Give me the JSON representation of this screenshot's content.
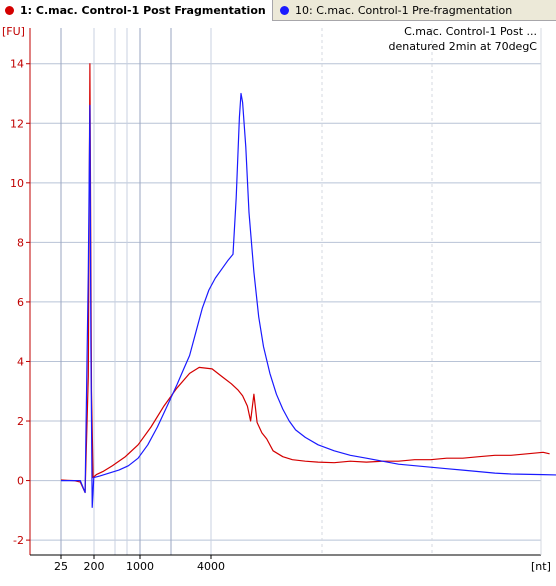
{
  "tabs": [
    {
      "label": "1: C.mac. Control-1 Post Fragmentation",
      "color": "#d40000",
      "active": true
    },
    {
      "label": "10: C.mac. Control-1 Pre-fragmentation",
      "color": "#1a1aff",
      "active": false
    }
  ],
  "chart_data": {
    "type": "line",
    "annotation_lines": [
      "C.mac. Control-1 Post ...",
      "denatured 2min at 70degC"
    ],
    "ylabel": "[FU]",
    "xlabel": "[nt]",
    "ylim": [
      -2.5,
      15.2
    ],
    "yticks": [
      -2,
      0,
      2,
      4,
      6,
      8,
      10,
      12,
      14
    ],
    "ytick_labels": [
      "-2",
      "0",
      "2",
      "4",
      "6",
      "8",
      "10",
      "12",
      "14"
    ],
    "xticks": [
      {
        "label": "25",
        "value": 25
      },
      {
        "label": "200",
        "value": 200
      },
      {
        "label": "1000",
        "value": 1000
      },
      {
        "label": "4000",
        "value": 4000
      }
    ],
    "grid": true,
    "series": [
      {
        "color": "#d40000",
        "points": [
          [
            0.0,
            0.02
          ],
          [
            0.02,
            0.01
          ],
          [
            0.04,
            0.0
          ],
          [
            0.06,
            -0.05
          ],
          [
            0.075,
            -0.4
          ],
          [
            0.085,
            3.5
          ],
          [
            0.09,
            14.0
          ],
          [
            0.095,
            3.0
          ],
          [
            0.1,
            0.1
          ],
          [
            0.11,
            0.2
          ],
          [
            0.13,
            0.3
          ],
          [
            0.16,
            0.5
          ],
          [
            0.2,
            0.8
          ],
          [
            0.24,
            1.2
          ],
          [
            0.28,
            1.8
          ],
          [
            0.32,
            2.5
          ],
          [
            0.36,
            3.1
          ],
          [
            0.4,
            3.6
          ],
          [
            0.43,
            3.8
          ],
          [
            0.47,
            3.75
          ],
          [
            0.5,
            3.5
          ],
          [
            0.53,
            3.25
          ],
          [
            0.55,
            3.05
          ],
          [
            0.565,
            2.85
          ],
          [
            0.58,
            2.5
          ],
          [
            0.59,
            2.0
          ],
          [
            0.6,
            2.9
          ],
          [
            0.61,
            1.95
          ],
          [
            0.625,
            1.6
          ],
          [
            0.64,
            1.4
          ],
          [
            0.66,
            1.0
          ],
          [
            0.69,
            0.8
          ],
          [
            0.72,
            0.7
          ],
          [
            0.76,
            0.65
          ],
          [
            0.8,
            0.62
          ],
          [
            0.85,
            0.6
          ],
          [
            0.9,
            0.65
          ],
          [
            0.95,
            0.62
          ],
          [
            1.0,
            0.65
          ],
          [
            1.05,
            0.65
          ],
          [
            1.1,
            0.7
          ],
          [
            1.15,
            0.7
          ],
          [
            1.2,
            0.75
          ],
          [
            1.25,
            0.75
          ],
          [
            1.3,
            0.8
          ],
          [
            1.35,
            0.85
          ],
          [
            1.4,
            0.85
          ],
          [
            1.45,
            0.9
          ],
          [
            1.5,
            0.95
          ],
          [
            1.52,
            0.9
          ]
        ]
      },
      {
        "color": "#1a1aff",
        "points": [
          [
            0.0,
            0.0
          ],
          [
            0.03,
            0.0
          ],
          [
            0.06,
            0.0
          ],
          [
            0.075,
            -0.4
          ],
          [
            0.085,
            7.0
          ],
          [
            0.09,
            12.6
          ],
          [
            0.093,
            4.5
          ],
          [
            0.097,
            -0.9
          ],
          [
            0.102,
            0.1
          ],
          [
            0.12,
            0.15
          ],
          [
            0.15,
            0.25
          ],
          [
            0.18,
            0.35
          ],
          [
            0.21,
            0.5
          ],
          [
            0.24,
            0.75
          ],
          [
            0.27,
            1.2
          ],
          [
            0.3,
            1.8
          ],
          [
            0.33,
            2.5
          ],
          [
            0.36,
            3.2
          ],
          [
            0.38,
            3.7
          ],
          [
            0.4,
            4.2
          ],
          [
            0.42,
            5.0
          ],
          [
            0.44,
            5.8
          ],
          [
            0.46,
            6.4
          ],
          [
            0.48,
            6.8
          ],
          [
            0.5,
            7.1
          ],
          [
            0.52,
            7.4
          ],
          [
            0.535,
            7.6
          ],
          [
            0.545,
            9.5
          ],
          [
            0.555,
            12.2
          ],
          [
            0.56,
            13.0
          ],
          [
            0.565,
            12.7
          ],
          [
            0.575,
            11.2
          ],
          [
            0.585,
            9.0
          ],
          [
            0.6,
            7.0
          ],
          [
            0.615,
            5.5
          ],
          [
            0.63,
            4.5
          ],
          [
            0.65,
            3.6
          ],
          [
            0.67,
            2.9
          ],
          [
            0.69,
            2.4
          ],
          [
            0.71,
            2.0
          ],
          [
            0.73,
            1.7
          ],
          [
            0.76,
            1.45
          ],
          [
            0.8,
            1.2
          ],
          [
            0.85,
            1.0
          ],
          [
            0.9,
            0.85
          ],
          [
            0.95,
            0.75
          ],
          [
            1.0,
            0.65
          ],
          [
            1.05,
            0.55
          ],
          [
            1.1,
            0.5
          ],
          [
            1.15,
            0.45
          ],
          [
            1.2,
            0.4
          ],
          [
            1.25,
            0.35
          ],
          [
            1.3,
            0.3
          ],
          [
            1.35,
            0.25
          ],
          [
            1.4,
            0.22
          ],
          [
            1.5,
            0.2
          ],
          [
            1.6,
            0.17
          ],
          [
            1.68,
            0.15
          ]
        ]
      }
    ]
  }
}
